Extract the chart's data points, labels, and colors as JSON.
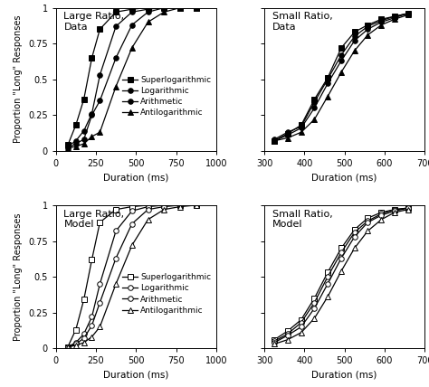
{
  "large_ratio_data": {
    "title": "Large Ratio,\nData",
    "xlim": [
      0,
      1000
    ],
    "xticks": [
      0,
      250,
      500,
      750,
      1000
    ],
    "ylim": [
      0,
      1
    ],
    "yticks": [
      0,
      0.25,
      0.5,
      0.75,
      1
    ],
    "has_legend": true,
    "legend_filled": true,
    "series": {
      "Superlogarithmic": {
        "x": [
          75,
          125,
          175,
          225,
          275,
          375,
          475,
          575,
          675,
          775,
          875
        ],
        "y": [
          0.04,
          0.18,
          0.36,
          0.65,
          0.85,
          0.97,
          0.99,
          1.0,
          1.0,
          1.0,
          1.0
        ],
        "marker": "s",
        "filled": true
      },
      "Logarithmic": {
        "x": [
          75,
          125,
          175,
          225,
          275,
          375,
          475,
          575,
          675,
          775,
          875
        ],
        "y": [
          0.03,
          0.07,
          0.14,
          0.26,
          0.53,
          0.87,
          0.97,
          0.99,
          1.0,
          1.0,
          1.0
        ],
        "marker": "o",
        "filled": true
      },
      "Arithmetic": {
        "x": [
          75,
          125,
          175,
          225,
          275,
          375,
          475,
          575,
          675,
          775,
          875
        ],
        "y": [
          0.02,
          0.05,
          0.08,
          0.25,
          0.35,
          0.65,
          0.88,
          0.97,
          1.0,
          1.0,
          1.0
        ],
        "marker": "o",
        "filled": true
      },
      "Antilogarithmic": {
        "x": [
          75,
          125,
          175,
          225,
          275,
          375,
          475,
          575,
          675,
          775,
          875
        ],
        "y": [
          0.02,
          0.03,
          0.05,
          0.1,
          0.13,
          0.45,
          0.72,
          0.9,
          0.97,
          1.0,
          1.0
        ],
        "marker": "^",
        "filled": true
      }
    }
  },
  "small_ratio_data": {
    "title": "Small Ratio,\nData",
    "xlim": [
      300,
      700
    ],
    "xticks": [
      300,
      400,
      500,
      600,
      700
    ],
    "ylim": [
      0,
      1
    ],
    "yticks": [
      0,
      0.25,
      0.5,
      0.75,
      1
    ],
    "has_legend": false,
    "legend_filled": true,
    "series": {
      "Superlogarithmic": {
        "x": [
          325,
          358,
          392,
          425,
          458,
          492,
          525,
          558,
          592,
          625,
          658
        ],
        "y": [
          0.07,
          0.12,
          0.18,
          0.36,
          0.51,
          0.72,
          0.83,
          0.88,
          0.92,
          0.94,
          0.96
        ],
        "marker": "s",
        "filled": true
      },
      "Logarithmic": {
        "x": [
          325,
          358,
          392,
          425,
          458,
          492,
          525,
          558,
          592,
          625,
          658
        ],
        "y": [
          0.08,
          0.13,
          0.17,
          0.34,
          0.5,
          0.67,
          0.8,
          0.87,
          0.91,
          0.94,
          0.96
        ],
        "marker": "o",
        "filled": true
      },
      "Arithmetic": {
        "x": [
          325,
          358,
          392,
          425,
          458,
          492,
          525,
          558,
          592,
          625,
          658
        ],
        "y": [
          0.07,
          0.11,
          0.16,
          0.3,
          0.47,
          0.63,
          0.77,
          0.85,
          0.9,
          0.93,
          0.96
        ],
        "marker": "o",
        "filled": true
      },
      "Antilogarithmic": {
        "x": [
          325,
          358,
          392,
          425,
          458,
          492,
          525,
          558,
          592,
          625,
          658
        ],
        "y": [
          0.07,
          0.09,
          0.13,
          0.22,
          0.38,
          0.55,
          0.7,
          0.81,
          0.88,
          0.92,
          0.95
        ],
        "marker": "^",
        "filled": true
      }
    }
  },
  "large_ratio_model": {
    "title": "Large Ratio,\nModel",
    "xlim": [
      0,
      1000
    ],
    "xticks": [
      0,
      250,
      500,
      750,
      1000
    ],
    "ylim": [
      0,
      1
    ],
    "yticks": [
      0,
      0.25,
      0.5,
      0.75,
      1
    ],
    "has_legend": true,
    "legend_filled": false,
    "series": {
      "Superlogarithmic": {
        "x": [
          75,
          125,
          175,
          225,
          275,
          375,
          475,
          575,
          675,
          775,
          875
        ],
        "y": [
          0.01,
          0.13,
          0.34,
          0.62,
          0.88,
          0.97,
          0.99,
          1.0,
          1.0,
          1.0,
          1.0
        ],
        "marker": "s",
        "filled": false
      },
      "Logarithmic": {
        "x": [
          75,
          125,
          175,
          225,
          275,
          375,
          475,
          575,
          675,
          775,
          875
        ],
        "y": [
          0.01,
          0.04,
          0.1,
          0.22,
          0.45,
          0.82,
          0.96,
          0.99,
          1.0,
          1.0,
          1.0
        ],
        "marker": "o",
        "filled": false
      },
      "Arithmetic": {
        "x": [
          75,
          125,
          175,
          225,
          275,
          375,
          475,
          575,
          675,
          775,
          875
        ],
        "y": [
          0.01,
          0.03,
          0.07,
          0.16,
          0.32,
          0.63,
          0.87,
          0.97,
          0.99,
          1.0,
          1.0
        ],
        "marker": "o",
        "filled": false
      },
      "Antilogarithmic": {
        "x": [
          75,
          125,
          175,
          225,
          275,
          375,
          475,
          575,
          675,
          775,
          875
        ],
        "y": [
          0.01,
          0.02,
          0.04,
          0.08,
          0.15,
          0.45,
          0.72,
          0.9,
          0.97,
          0.99,
          1.0
        ],
        "marker": "^",
        "filled": false
      }
    }
  },
  "small_ratio_model": {
    "title": "Small Ratio,\nModel",
    "xlim": [
      300,
      700
    ],
    "xticks": [
      300,
      400,
      500,
      600,
      700
    ],
    "ylim": [
      0,
      1
    ],
    "yticks": [
      0,
      0.25,
      0.5,
      0.75,
      1
    ],
    "has_legend": false,
    "legend_filled": false,
    "series": {
      "Superlogarithmic": {
        "x": [
          325,
          358,
          392,
          425,
          458,
          492,
          525,
          558,
          592,
          625,
          658
        ],
        "y": [
          0.06,
          0.12,
          0.2,
          0.35,
          0.53,
          0.7,
          0.83,
          0.91,
          0.95,
          0.97,
          0.98
        ],
        "marker": "s",
        "filled": false
      },
      "Logarithmic": {
        "x": [
          325,
          358,
          392,
          425,
          458,
          492,
          525,
          558,
          592,
          625,
          658
        ],
        "y": [
          0.05,
          0.1,
          0.18,
          0.32,
          0.5,
          0.67,
          0.81,
          0.89,
          0.94,
          0.97,
          0.98
        ],
        "marker": "o",
        "filled": false
      },
      "Arithmetic": {
        "x": [
          325,
          358,
          392,
          425,
          458,
          492,
          525,
          558,
          592,
          625,
          658
        ],
        "y": [
          0.04,
          0.09,
          0.15,
          0.28,
          0.45,
          0.63,
          0.78,
          0.88,
          0.93,
          0.96,
          0.98
        ],
        "marker": "o",
        "filled": false
      },
      "Antilogarithmic": {
        "x": [
          325,
          358,
          392,
          425,
          458,
          492,
          525,
          558,
          592,
          625,
          658
        ],
        "y": [
          0.03,
          0.06,
          0.11,
          0.21,
          0.36,
          0.54,
          0.7,
          0.82,
          0.9,
          0.95,
          0.97
        ],
        "marker": "^",
        "filled": false
      }
    }
  },
  "legend_labels": [
    "Superlogarithmic",
    "Logarithmic",
    "Arithmetic",
    "Antilogarithmic"
  ],
  "legend_markers": [
    "s",
    "o",
    "o",
    "^"
  ],
  "ylabel": "Proportion \"Long\" Responses",
  "xlabel": "Duration (ms)",
  "color": "black",
  "markersize": 4,
  "linewidth": 0.9
}
